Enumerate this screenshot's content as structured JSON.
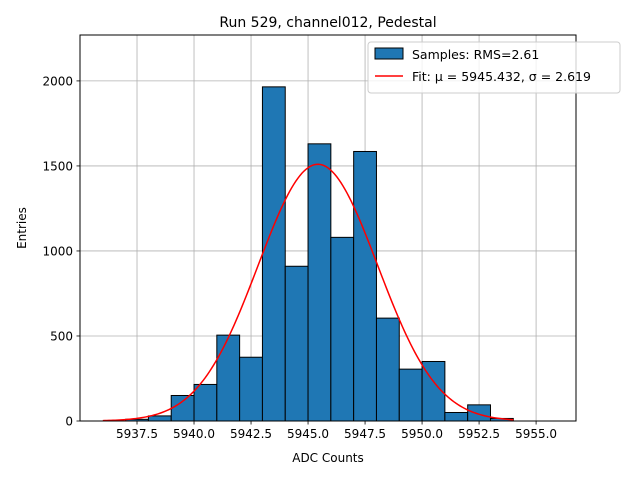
{
  "chart_data": {
    "type": "bar",
    "title": "Run 529, channel012, Pedestal",
    "xlabel": "ADC Counts",
    "ylabel": "Entries",
    "xlim": [
      5935.0,
      5956.75
    ],
    "ylim": [
      0,
      2270
    ],
    "xticks": [
      5937.5,
      5940.0,
      5942.5,
      5945.0,
      5947.5,
      5950.0,
      5952.5,
      5955.0
    ],
    "xtick_labels": [
      "5937.5",
      "5940.0",
      "5942.5",
      "5945.0",
      "5947.5",
      "5950.0",
      "5952.5",
      "5955.0"
    ],
    "yticks": [
      0,
      500,
      1000,
      1500,
      2000
    ],
    "ytick_labels": [
      "0",
      "500",
      "1000",
      "1500",
      "2000"
    ],
    "grid": true,
    "legend_position": "top-right",
    "histogram": {
      "name": "Samples: RMS=2.61",
      "color": "#1f77b4",
      "edgecolor": "#000000",
      "bin_edges": [
        5937.0,
        5938.0,
        5939.0,
        5940.0,
        5941.0,
        5942.0,
        5943.0,
        5944.0,
        5945.0,
        5946.0,
        5947.0,
        5948.0,
        5949.0,
        5950.0,
        5951.0,
        5952.0,
        5953.0,
        5954.0
      ],
      "values": [
        10,
        30,
        150,
        215,
        505,
        375,
        1965,
        910,
        1630,
        1080,
        1585,
        605,
        305,
        350,
        50,
        95,
        15
      ]
    },
    "fit": {
      "name": "Fit: μ = 5945.432, σ = 2.619",
      "color": "#ff0000",
      "mu": 5945.432,
      "sigma": 2.619,
      "amplitude": 1510,
      "x_range": [
        5936.0,
        5954.0
      ]
    }
  }
}
